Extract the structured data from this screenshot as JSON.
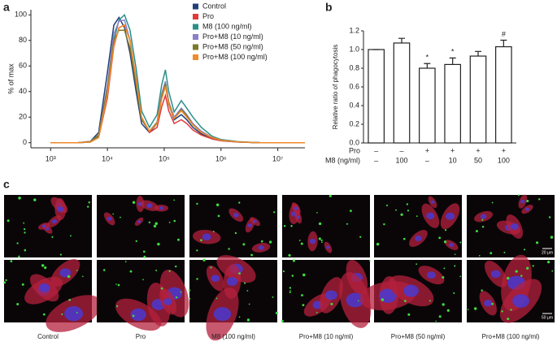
{
  "chart_data": [
    {
      "type": "line",
      "label": "a",
      "y_label": "% of max",
      "xscale": "log",
      "x": [
        1000,
        3000,
        5000,
        7000,
        10000,
        13000,
        16000,
        20000,
        25000,
        32000,
        40000,
        55000,
        75000,
        90000,
        105000,
        120000,
        150000,
        200000,
        250000,
        320000,
        450000,
        700000,
        1000000,
        2000000,
        5000000,
        30000000
      ],
      "series": [
        {
          "name": "Control",
          "color": "#1f3f7a",
          "values": [
            0,
            0,
            1,
            8,
            55,
            92,
            98,
            90,
            70,
            40,
            15,
            8,
            15,
            35,
            47,
            30,
            18,
            22,
            18,
            12,
            7,
            3,
            1.5,
            0.5,
            0,
            0
          ]
        },
        {
          "name": "Pro",
          "color": "#e03a3a",
          "values": [
            0,
            0,
            0.5,
            4,
            35,
            75,
            90,
            92,
            80,
            50,
            20,
            8,
            12,
            28,
            37,
            25,
            15,
            18,
            15,
            10,
            6,
            3,
            1.5,
            0.5,
            0,
            0
          ]
        },
        {
          "name": "M8 (100 ng/ml)",
          "color": "#2a8f8a",
          "values": [
            0,
            0,
            0.5,
            5,
            40,
            80,
            96,
            100,
            88,
            58,
            25,
            12,
            22,
            45,
            57,
            40,
            24,
            33,
            27,
            20,
            12,
            5,
            2.5,
            0.8,
            0,
            0
          ]
        },
        {
          "name": "Pro+M8 (10 ng/ml)",
          "color": "#8c7fc8",
          "values": [
            0,
            0,
            1,
            6,
            45,
            85,
            95,
            96,
            80,
            48,
            18,
            9,
            16,
            38,
            48,
            32,
            20,
            27,
            22,
            15,
            9,
            4,
            2,
            0.6,
            0,
            0
          ]
        },
        {
          "name": "Pro+M8 (50 ng/ml)",
          "color": "#7a7a2a",
          "values": [
            0,
            0,
            0.8,
            6,
            42,
            80,
            88,
            88,
            74,
            45,
            18,
            9,
            16,
            36,
            46,
            31,
            19,
            26,
            21,
            14,
            8,
            4,
            2,
            0.6,
            0,
            0
          ]
        },
        {
          "name": "Pro+M8 (100 ng/ml)",
          "color": "#f08a2a",
          "values": [
            0,
            0,
            0.5,
            4,
            38,
            76,
            90,
            92,
            80,
            50,
            20,
            9,
            15,
            34,
            44,
            30,
            19,
            25,
            20,
            14,
            8,
            4,
            2,
            0.6,
            0,
            0
          ]
        }
      ],
      "xlim": [
        450,
        30000000
      ],
      "xticks": [
        {
          "value": 1000,
          "label": "10³"
        },
        {
          "value": 10000,
          "label": "10⁴"
        },
        {
          "value": 100000,
          "label": "10⁵"
        },
        {
          "value": 1000000,
          "label": "10⁶"
        },
        {
          "value": 10000000,
          "label": "10⁷"
        }
      ],
      "ylim": [
        -4,
        104
      ],
      "yticks": [
        0,
        20,
        40,
        60,
        80,
        100
      ]
    },
    {
      "type": "bar",
      "label": "b",
      "y_label": "Relative ratio of phagocytosis",
      "color": "#ffffff",
      "values": [
        1.0,
        1.07,
        0.8,
        0.84,
        0.93,
        1.03
      ],
      "errors": [
        0,
        0.05,
        0.05,
        0.07,
        0.05,
        0.07
      ],
      "markers": [
        null,
        null,
        "*",
        "*",
        null,
        "#"
      ],
      "ylim": [
        0,
        1.2
      ],
      "yticks": [
        {
          "value": 0,
          "label": "0.0"
        },
        {
          "value": 0.2,
          "label": "0.2"
        },
        {
          "value": 0.4,
          "label": "0.4"
        },
        {
          "value": 0.6,
          "label": "0.6"
        },
        {
          "value": 0.8,
          "label": "0.8"
        },
        {
          "value": 1,
          "label": "1.0"
        },
        {
          "value": 1.2,
          "label": "1.2"
        }
      ],
      "treatment_rows": [
        {
          "label": "Pro",
          "cells": [
            "–",
            "–",
            "+",
            "+",
            "+",
            "+"
          ]
        },
        {
          "label": "M8 (ng/ml)",
          "cells": [
            "–",
            "100",
            "–",
            "10",
            "50",
            "100"
          ]
        }
      ]
    }
  ],
  "panel_c": {
    "label": "c",
    "captions": [
      "Control",
      "Pro",
      "M8 (100 ng/ml)",
      "Pro+M8 (10 ng/ml)",
      "Pro+M8 (50 ng/ml)",
      "Pro+M8 (100 ng/ml)"
    ],
    "scale_bars": [
      "20 μm",
      "50 μm"
    ]
  }
}
